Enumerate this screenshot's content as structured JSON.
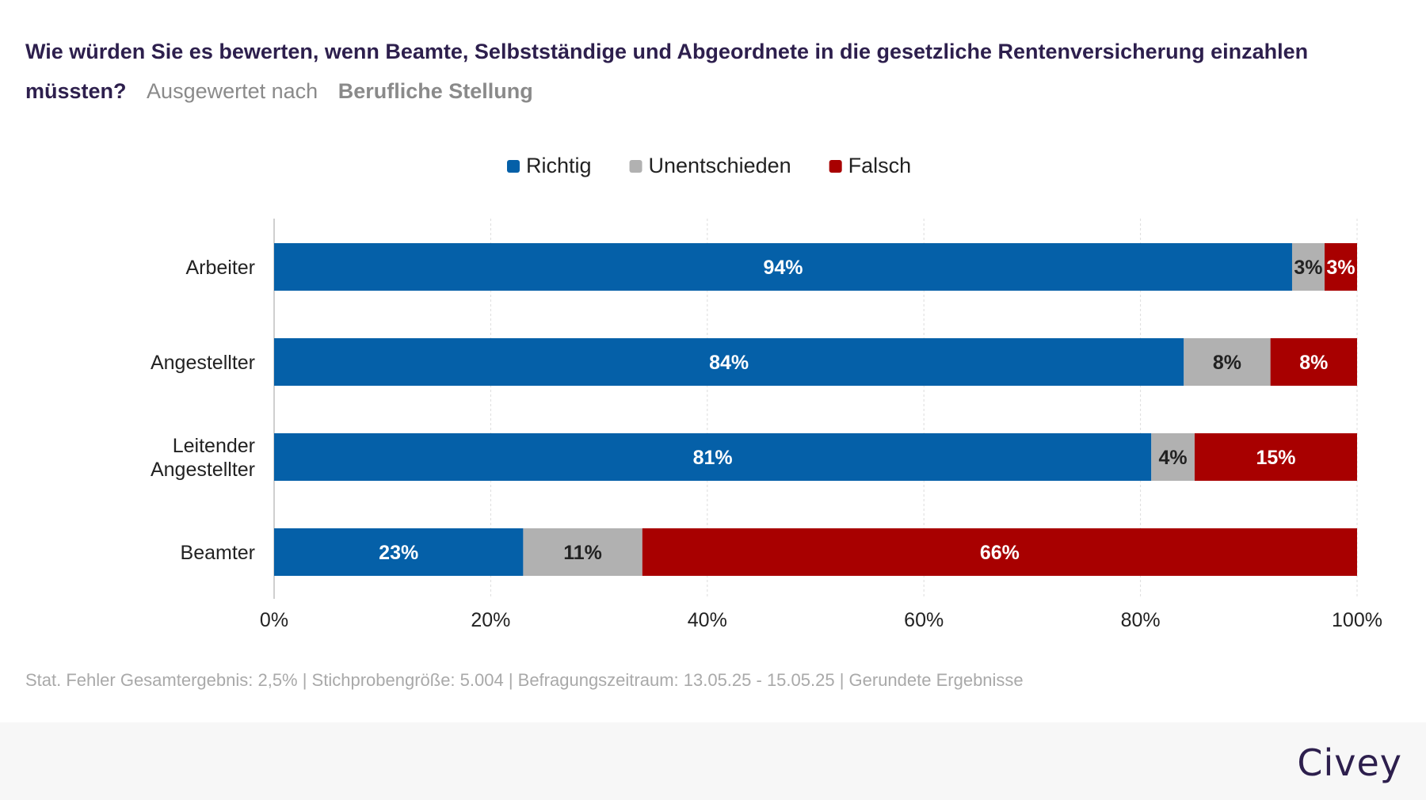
{
  "title": {
    "question": "Wie würden Sie es bewerten, wenn Beamte, Selbstständige und Abgeordnete in die gesetzliche Rentenversicherung einzahlen müssten?",
    "evaluated_by": "Ausgewertet nach",
    "group": "Berufliche Stellung"
  },
  "chart_data": {
    "type": "bar",
    "orientation": "horizontal",
    "stacked": true,
    "categories": [
      [
        "Arbeiter"
      ],
      [
        "Angestellter"
      ],
      [
        "Leitender",
        "Angestellter"
      ],
      [
        "Beamter"
      ]
    ],
    "series": [
      {
        "name": "Richtig",
        "color": "#0560a8",
        "label_color": "#ffffff",
        "values": [
          94,
          84,
          81,
          23
        ]
      },
      {
        "name": "Unentschieden",
        "color": "#b1b1b1",
        "label_color": "#222222",
        "values": [
          3,
          8,
          4,
          11
        ]
      },
      {
        "name": "Falsch",
        "color": "#a80000",
        "label_color": "#ffffff",
        "values": [
          3,
          8,
          15,
          66
        ]
      }
    ],
    "xlim": [
      0,
      100
    ],
    "xticks": [
      0,
      20,
      40,
      60,
      80,
      100
    ],
    "tick_suffix": "%",
    "value_suffix": "%",
    "grid": true,
    "legend_position": "top-center"
  },
  "footnote": "Stat. Fehler Gesamtergebnis: 2,5% | Stichprobengröße: 5.004 | Befragungszeitraum: 13.05.25 - 15.05.25 | Gerundete Ergebnisse",
  "brand": "Civey"
}
